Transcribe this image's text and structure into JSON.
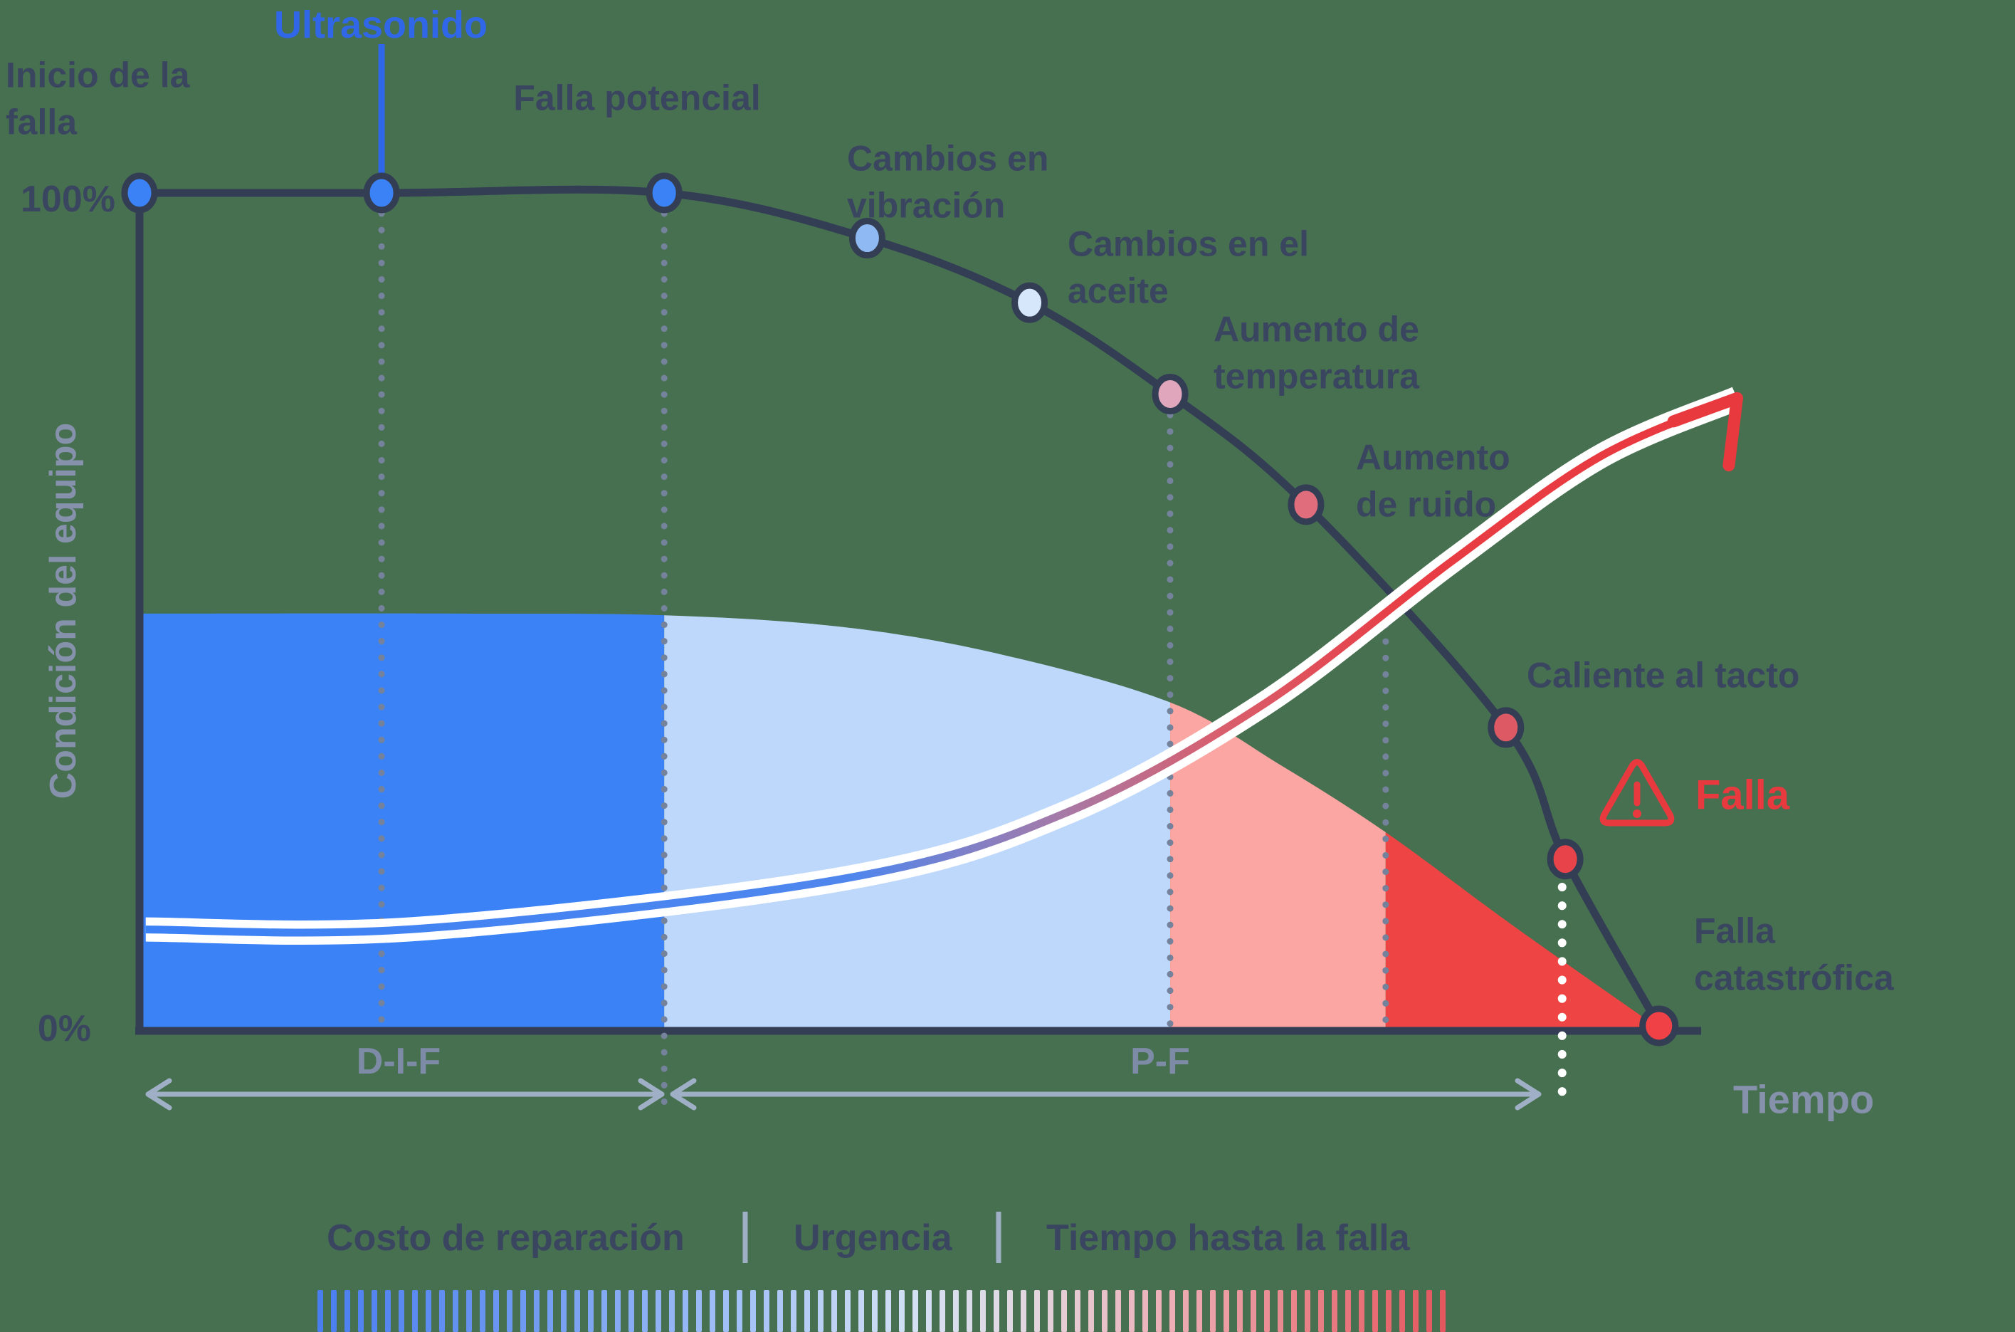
{
  "colors": {
    "background": "#477050",
    "ink": "#333e55",
    "text": "#3a4660",
    "muted_text": "#8691ab",
    "range_text": "#7e8ba6",
    "arrow_line": "#9fb0c6",
    "guide_dots": "#75829b",
    "accent_blue": "#2f67e8",
    "fill_blue": "#3b82f6",
    "fill_lightblue": "#bed8fb",
    "fill_pink": "#fba6a3",
    "fill_red": "#ef4444",
    "alert_red": "#e8393f",
    "white": "#ffffff"
  },
  "chart_data": {
    "type": "line",
    "title": "",
    "ylabel": "Condición del equipo",
    "xlabel": "Tiempo",
    "ytick_top": "100%",
    "ytick_bottom": "0%",
    "xlim": [
      0,
      100
    ],
    "ylim": [
      0,
      100
    ],
    "grid": false,
    "condition_curve": {
      "name": "Condición del equipo",
      "points": [
        {
          "t": 0,
          "condition_pct": 100,
          "label": "Inicio de la falla",
          "marker_color": "#3b82f6"
        },
        {
          "t": 15.5,
          "condition_pct": 100,
          "label": "Ultrasonido",
          "marker_color": "#3b82f6"
        },
        {
          "t": 33.6,
          "condition_pct": 100,
          "label": "Falla potencial",
          "marker_color": "#3b82f6"
        },
        {
          "t": 46.6,
          "condition_pct": 94.6,
          "label": "Cambios en vibración",
          "marker_color": "#8fb9f2"
        },
        {
          "t": 57.0,
          "condition_pct": 86.9,
          "label": "Cambios en el aceite",
          "marker_color": "#d6e6fb"
        },
        {
          "t": 66.0,
          "condition_pct": 76.0,
          "label": "Aumento de temperatura",
          "marker_color": "#dfa6bc"
        },
        {
          "t": 74.7,
          "condition_pct": 62.8,
          "label": "Aumento de ruido",
          "marker_color": "#e06d7c"
        },
        {
          "t": 87.5,
          "condition_pct": 36.2,
          "label": "Caliente al tacto",
          "marker_color": "#dd5a64"
        },
        {
          "t": 91.3,
          "condition_pct": 20.5,
          "label": "Falla",
          "marker_color": "#e8434b"
        },
        {
          "t": 97.3,
          "condition_pct": 0.6,
          "label": "Falla catastrófica",
          "marker_color": "#ef4146"
        }
      ]
    },
    "cost_curve": {
      "name": "Costo de reparación / Urgencia / Tiempo hasta la falla",
      "points": [
        {
          "t": 0.4,
          "value_pct": 12.1
        },
        {
          "t": 18,
          "value_pct": 12.2
        },
        {
          "t": 45.2,
          "value_pct": 18.2
        },
        {
          "t": 59.3,
          "value_pct": 26.0
        },
        {
          "t": 72,
          "value_pct": 39.0
        },
        {
          "t": 84,
          "value_pct": 56.0
        },
        {
          "t": 93.5,
          "value_pct": 68.5
        },
        {
          "t": 102.3,
          "value_pct": 75.5
        }
      ],
      "stroke_gradient": [
        {
          "pos": 0,
          "color": "#3b82f6"
        },
        {
          "pos": 0.45,
          "color": "#4f86ee"
        },
        {
          "pos": 0.58,
          "color": "#a57aa8"
        },
        {
          "pos": 0.68,
          "color": "#d85f6e"
        },
        {
          "pos": 0.8,
          "color": "#e83d44"
        },
        {
          "pos": 1,
          "color": "#e8393f"
        }
      ]
    },
    "condition_area": {
      "top_profile": [
        {
          "t": 0,
          "pct": 49.8
        },
        {
          "t": 20,
          "pct": 49.8
        },
        {
          "t": 33.6,
          "pct": 49.6
        },
        {
          "t": 45,
          "pct": 48.2
        },
        {
          "t": 55,
          "pct": 45.0
        },
        {
          "t": 66,
          "pct": 39.2
        },
        {
          "t": 73,
          "pct": 31.8
        },
        {
          "t": 79.8,
          "pct": 23.7
        },
        {
          "t": 88,
          "pct": 12.5
        },
        {
          "t": 97.3,
          "pct": 0.3
        }
      ],
      "regions": [
        {
          "from": 0,
          "to": 33.6,
          "color": "#3b82f6",
          "name": "zona-dif"
        },
        {
          "from": 33.6,
          "to": 66.0,
          "color": "#bed8fb",
          "name": "zona-pf-temprana"
        },
        {
          "from": 66.0,
          "to": 79.8,
          "color": "#fba6a3",
          "name": "zona-pf-media"
        },
        {
          "from": 79.8,
          "to": 97.5,
          "color": "#ef4444",
          "name": "zona-pf-critica"
        }
      ]
    },
    "guides": [
      {
        "t": 15.5,
        "style": "gray"
      },
      {
        "t": 33.6,
        "style": "gray"
      },
      {
        "t": 66.0,
        "style": "gray"
      },
      {
        "t": 79.8,
        "style": "gray"
      },
      {
        "t": 91.1,
        "style": "white"
      }
    ],
    "ranges": [
      {
        "label": "D-I-F",
        "from": 0,
        "to": 33.6
      },
      {
        "label": "P-F",
        "from": 33.6,
        "to": 89.6
      }
    ],
    "alert": {
      "label": "Falla",
      "icon": "warning-triangle-icon"
    },
    "legend": {
      "items": [
        "Costo de reparación",
        "Urgencia",
        "Tiempo hasta la falla"
      ],
      "separator": "|",
      "gradient_stops": [
        {
          "pos": 0,
          "color": "#4a7ef0"
        },
        {
          "pos": 0.18,
          "color": "#6f9af2"
        },
        {
          "pos": 0.38,
          "color": "#a6c3f6"
        },
        {
          "pos": 0.52,
          "color": "#d3e0f4"
        },
        {
          "pos": 0.62,
          "color": "#e2d8e2"
        },
        {
          "pos": 0.74,
          "color": "#edb3ba"
        },
        {
          "pos": 0.87,
          "color": "#ea8289"
        },
        {
          "pos": 1,
          "color": "#e4545c"
        }
      ]
    }
  }
}
